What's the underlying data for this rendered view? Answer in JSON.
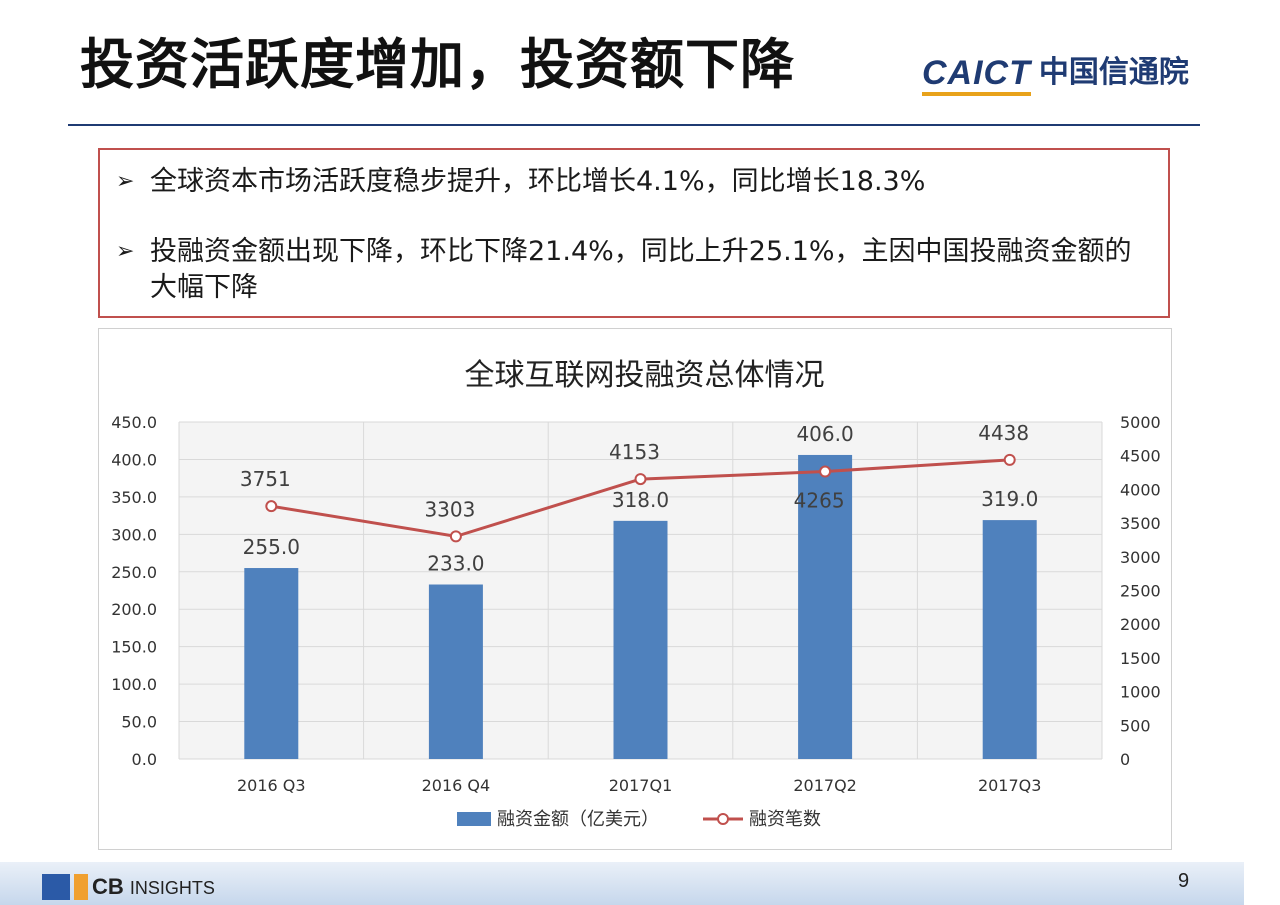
{
  "slide": {
    "title": "投资活跃度增加，投资额下降",
    "logo_en": "CAICT",
    "logo_cn": "中国信通院",
    "page_number": "9",
    "footer_logo_text": "CB",
    "footer_logo_sub": "INSIGHTS"
  },
  "callout": {
    "bullets": [
      "全球资本市场活跃度稳步提升，环比增长4.1%，同比增长18.3%",
      "投融资金额出现下降，环比下降21.4%，同比上升25.1%，主因中国投融资金额的大幅下降"
    ],
    "bullet_glyph": "➢"
  },
  "colors": {
    "bar": "#4f81bd",
    "line": "#c0504d",
    "grid": "#d9d9d9",
    "title_rule": "#1f3b73",
    "callout_border": "#c0504d"
  },
  "chart_data": {
    "type": "bar",
    "title": "全球互联网投融资总体情况",
    "categories": [
      "2016 Q3",
      "2016 Q4",
      "2017Q1",
      "2017Q2",
      "2017Q3"
    ],
    "series": [
      {
        "name": "融资金额（亿美元）",
        "type": "bar",
        "axis": "left",
        "values": [
          255.0,
          233.0,
          318.0,
          406.0,
          319.0
        ]
      },
      {
        "name": "融资笔数",
        "type": "line",
        "axis": "right",
        "values": [
          3751,
          3303,
          4153,
          4265,
          4438
        ]
      }
    ],
    "bar_labels": [
      "255.0",
      "233.0",
      "318.0",
      "406.0",
      "319.0"
    ],
    "line_labels": [
      "3751",
      "3303",
      "4153",
      "4265",
      "4438"
    ],
    "y_left": {
      "min": 0,
      "max": 450,
      "ticks": [
        "0.0",
        "50.0",
        "100.0",
        "150.0",
        "200.0",
        "250.0",
        "300.0",
        "350.0",
        "400.0",
        "450.0"
      ]
    },
    "y_right": {
      "min": 0,
      "max": 5000,
      "ticks": [
        "0",
        "500",
        "1000",
        "1500",
        "2000",
        "2500",
        "3000",
        "3500",
        "4000",
        "4500",
        "5000"
      ]
    },
    "grid": true,
    "legend": "bottom"
  }
}
